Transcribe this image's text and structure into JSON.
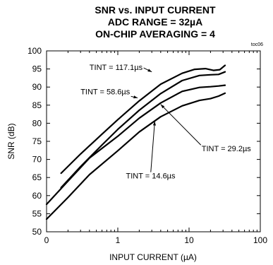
{
  "tag": "toc06",
  "chart_data": {
    "type": "line",
    "title_lines": [
      "SNR vs. INPUT CURRENT",
      "ADC RANGE = 32µA",
      "ON-CHIP AVERAGING = 4"
    ],
    "xlabel": "INPUT CURRENT (µA)",
    "ylabel": "SNR (dB)",
    "x_scale": "log",
    "xlim": [
      0.1,
      100
    ],
    "ylim": [
      50,
      100
    ],
    "x_ticks": [
      0.1,
      1,
      10,
      100
    ],
    "x_tick_labels": [
      "0",
      "1",
      "10",
      "100"
    ],
    "y_ticks": [
      50,
      55,
      60,
      65,
      70,
      75,
      80,
      85,
      90,
      95,
      100
    ],
    "grid": false,
    "series": [
      {
        "name": "TINT = 117.1µs",
        "x": [
          0.16,
          0.3,
          0.6,
          1.0,
          2.0,
          4.0,
          8.0,
          12.0,
          17.0,
          22.0,
          27.0,
          32.0
        ],
        "y": [
          66.2,
          71.5,
          77.0,
          81.0,
          86.2,
          90.8,
          93.8,
          94.9,
          95.1,
          94.6,
          94.8,
          96.0
        ]
      },
      {
        "name": "TINT = 58.6µs",
        "x": [
          0.16,
          0.3,
          0.6,
          1.0,
          2.0,
          4.0,
          8.0,
          14.0,
          20.0,
          26.0,
          32.0
        ],
        "y": [
          62.2,
          68.0,
          74.0,
          78.3,
          83.6,
          88.2,
          91.8,
          93.2,
          93.4,
          93.5,
          94.2
        ]
      },
      {
        "name": "TINT = 29.2µs",
        "x": [
          0.1,
          0.2,
          0.4,
          1.0,
          2.0,
          4.0,
          8.0,
          14.0,
          20.0,
          26.0,
          32.0
        ],
        "y": [
          57.6,
          64.0,
          70.4,
          76.4,
          81.4,
          85.6,
          88.8,
          89.9,
          90.1,
          90.3,
          90.5
        ]
      },
      {
        "name": "TINT = 14.6µs",
        "x": [
          0.1,
          0.2,
          0.4,
          1.0,
          2.0,
          4.0,
          8.0,
          14.0,
          20.0,
          26.0,
          32.0
        ],
        "y": [
          53.5,
          59.5,
          65.8,
          72.4,
          77.6,
          81.8,
          84.8,
          86.3,
          86.8,
          87.5,
          88.3
        ]
      }
    ],
    "annotations": [
      {
        "text": "TINT = 117.1µs",
        "x": 0.4,
        "y": 95.5,
        "arrow_to_x": 3.0,
        "arrow_to_y": 94.2
      },
      {
        "text": "TINT = 58.6µs",
        "x": 0.3,
        "y": 88.8,
        "arrow_to_x": 1.9,
        "arrow_to_y": 87.0
      },
      {
        "text": "TINT = 29.2µs",
        "x": 15.0,
        "y": 73.0,
        "arrow_to_x": 4.0,
        "arrow_to_y": 85.2
      },
      {
        "text": "TINT = 14.6µs",
        "x": 1.3,
        "y": 65.5,
        "arrow_to_x": 3.3,
        "arrow_to_y": 80.5
      }
    ]
  }
}
